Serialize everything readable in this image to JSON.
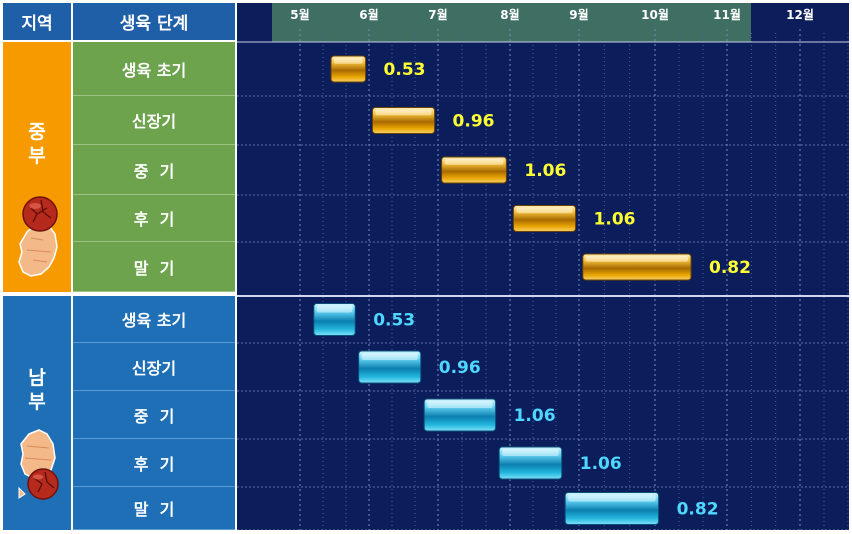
{
  "header": {
    "region_col": "지역",
    "stage_col": "생육 단계"
  },
  "months": [
    "5월",
    "6월",
    "7월",
    "8월",
    "9월",
    "10월",
    "11월",
    "12월"
  ],
  "regions": [
    {
      "key": "central",
      "label": "중\n부",
      "char1": "중",
      "char2": "부",
      "bg": "#f79a00",
      "stage_bg": "#6ea34e",
      "bar_color": "#d89a00",
      "label_color": "#ffff33"
    },
    {
      "key": "south",
      "label": "남\n부",
      "char1": "남",
      "char2": "부",
      "bg": "#1f6fb7",
      "stage_bg": "#1f6fb7",
      "bar_color": "#22b5dc",
      "label_color": "#4fd8ff"
    }
  ],
  "chart_data": {
    "type": "bar",
    "orientation": "horizontal-range",
    "x_axis_ticks": [
      "5월",
      "6월",
      "7월",
      "8월",
      "9월",
      "10월",
      "11월",
      "12월"
    ],
    "groups": [
      {
        "name": "중부",
        "rows": [
          {
            "stage": "생육 초기",
            "start_month": 5.45,
            "end_month": 5.95,
            "value": 0.53
          },
          {
            "stage": "신장기",
            "start_month": 6.05,
            "end_month": 6.95,
            "value": 0.96
          },
          {
            "stage": "중  기",
            "start_month": 7.05,
            "end_month": 7.95,
            "value": 1.06
          },
          {
            "stage": "후  기",
            "start_month": 8.05,
            "end_month": 8.95,
            "value": 1.06
          },
          {
            "stage": "말  기",
            "start_month": 9.05,
            "end_month": 10.5,
            "value": 0.82
          }
        ]
      },
      {
        "name": "남부",
        "rows": [
          {
            "stage": "생육 초기",
            "start_month": 5.2,
            "end_month": 5.8,
            "value": 0.53
          },
          {
            "stage": "신장기",
            "start_month": 5.85,
            "end_month": 6.75,
            "value": 0.96
          },
          {
            "stage": "중  기",
            "start_month": 6.8,
            "end_month": 7.8,
            "value": 1.06
          },
          {
            "stage": "후  기",
            "start_month": 7.85,
            "end_month": 8.75,
            "value": 1.06
          },
          {
            "stage": "말  기",
            "start_month": 8.8,
            "end_month": 10.05,
            "value": 0.82
          }
        ]
      }
    ]
  }
}
